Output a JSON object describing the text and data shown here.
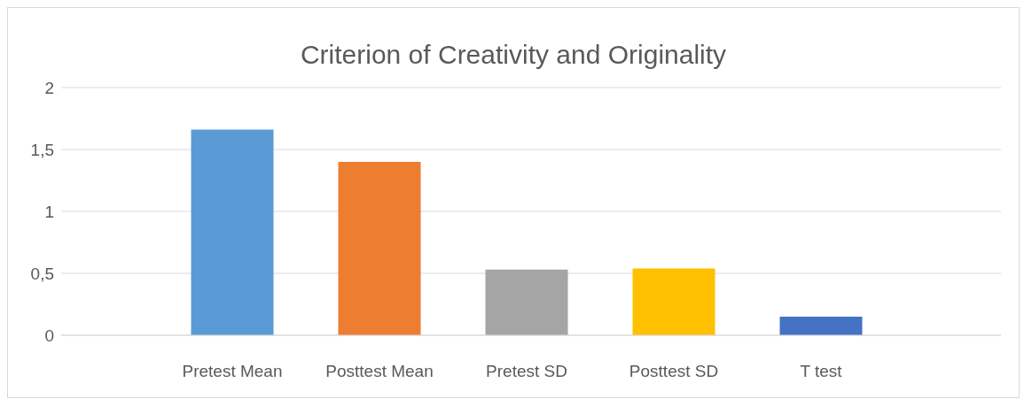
{
  "chart_data": {
    "type": "bar",
    "title": "Criterion of Creativity  and Originality",
    "categories": [
      "Pretest Mean",
      "Posttest Mean",
      "Pretest SD",
      "Posttest SD",
      "T test"
    ],
    "values": [
      1.66,
      1.4,
      0.53,
      0.54,
      0.15
    ],
    "colors": [
      "#5b9bd5",
      "#ed7d31",
      "#a5a5a5",
      "#ffc000",
      "#4472c4"
    ],
    "ylim": [
      0,
      2
    ],
    "yticks": [
      0,
      {
        "value": 0.5,
        "label": "0,5"
      },
      1,
      {
        "value": 1.5,
        "label": "1,5"
      },
      2
    ],
    "grid": "y"
  }
}
